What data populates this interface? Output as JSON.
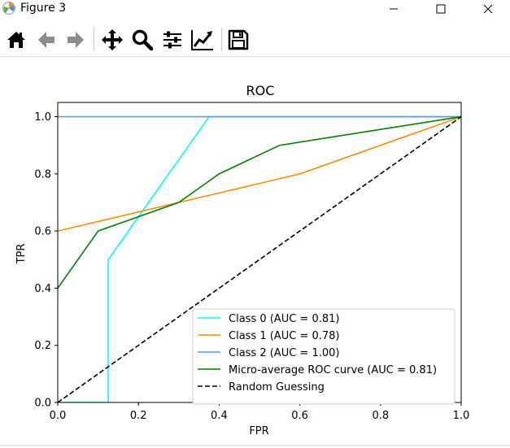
{
  "window": {
    "title": "Figure 3"
  },
  "toolbar": {
    "buttons": [
      {
        "name": "home-icon",
        "label": "Home"
      },
      {
        "name": "back-arrow-icon",
        "label": "Back"
      },
      {
        "name": "forward-arrow-icon",
        "label": "Forward"
      },
      {
        "name": "pan-icon",
        "label": "Pan"
      },
      {
        "name": "zoom-icon",
        "label": "Zoom"
      },
      {
        "name": "subplots-config-icon",
        "label": "Configure subplots"
      },
      {
        "name": "edit-curves-icon",
        "label": "Edit axis, curve and image parameters"
      },
      {
        "name": "save-icon",
        "label": "Save the figure"
      }
    ]
  },
  "chart_data": {
    "type": "line",
    "title": "ROC",
    "xlabel": "FPR",
    "ylabel": "TPR",
    "xlim": [
      0.0,
      1.0
    ],
    "ylim": [
      0.0,
      1.05
    ],
    "xticks": [
      0.0,
      0.2,
      0.4,
      0.6,
      0.8,
      1.0
    ],
    "xtick_labels": [
      "0.0",
      "0.2",
      "0.4",
      "0.6",
      "0.8",
      "1.0"
    ],
    "yticks": [
      0.0,
      0.2,
      0.4,
      0.6,
      0.8,
      1.0
    ],
    "ytick_labels": [
      "0.0",
      "0.2",
      "0.4",
      "0.6",
      "0.8",
      "1.0"
    ],
    "grid": false,
    "legend_position": "lower-right",
    "series": [
      {
        "name": "Class 0 (AUC = 0.81)",
        "color": "#00ffff",
        "dash": "solid",
        "x": [
          0.0,
          0.125,
          0.125,
          0.375,
          1.0
        ],
        "y": [
          0.0,
          0.0,
          0.5,
          1.0,
          1.0
        ]
      },
      {
        "name": "Class 1 (AUC = 0.78)",
        "color": "#ff8c00",
        "dash": "solid",
        "x": [
          0.0,
          0.6,
          1.0
        ],
        "y": [
          0.6,
          0.8,
          1.0
        ]
      },
      {
        "name": "Class 2 (AUC = 1.00)",
        "color": "#6495ed",
        "dash": "solid",
        "x": [
          0.0,
          1.0
        ],
        "y": [
          1.0,
          1.0
        ]
      },
      {
        "name": "Micro-average ROC curve (AUC = 0.81)",
        "color": "#008000",
        "dash": "solid",
        "x": [
          0.0,
          0.1,
          0.3,
          0.4,
          0.55,
          1.0
        ],
        "y": [
          0.4,
          0.6,
          0.7,
          0.8,
          0.9,
          1.0
        ]
      },
      {
        "name": "Random Guessing",
        "color": "#000000",
        "dash": "dashed",
        "x": [
          0.0,
          1.0
        ],
        "y": [
          0.0,
          1.0
        ]
      }
    ]
  }
}
